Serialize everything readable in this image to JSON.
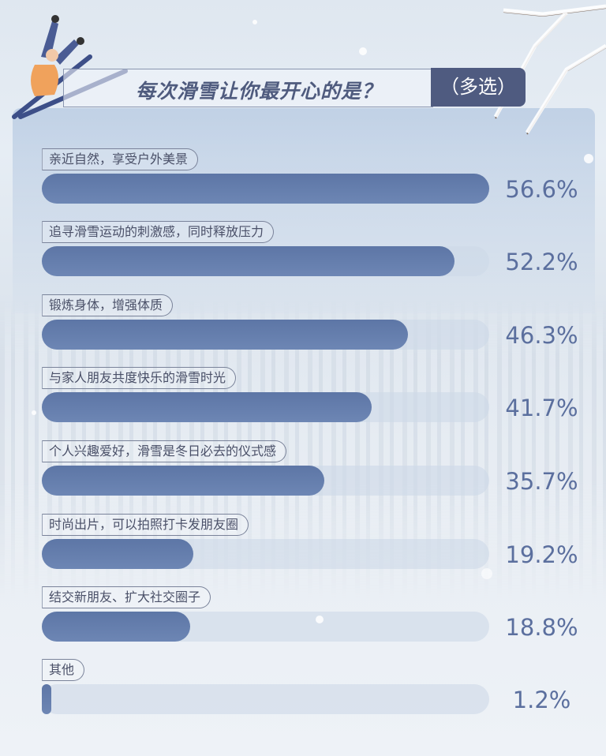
{
  "chart_data": {
    "type": "bar",
    "orientation": "horizontal",
    "title": "每次滑雪让你最开心的是？",
    "title_tag": "（多选）",
    "categories": [
      "亲近自然，享受户外美景",
      "追寻滑雪运动的刺激感，同时释放压力",
      "锻炼身体，增强体质",
      "与家人朋友共度快乐的滑雪时光",
      "个人兴趣爱好，滑雪是冬日必去的仪式感",
      "时尚出片，可以拍照打卡发朋友圈",
      "结交新朋友、扩大社交圈子",
      "其他"
    ],
    "values": [
      56.6,
      52.2,
      46.3,
      41.7,
      35.7,
      19.2,
      18.8,
      1.2
    ],
    "value_labels": [
      "56.6%",
      "52.2%",
      "46.3%",
      "41.7%",
      "35.7%",
      "19.2%",
      "18.8%",
      "1.2%"
    ],
    "unit": "%",
    "bar_color": "#6480b0",
    "track_color": "#d3dceb",
    "accent_color": "#4f5b80"
  }
}
